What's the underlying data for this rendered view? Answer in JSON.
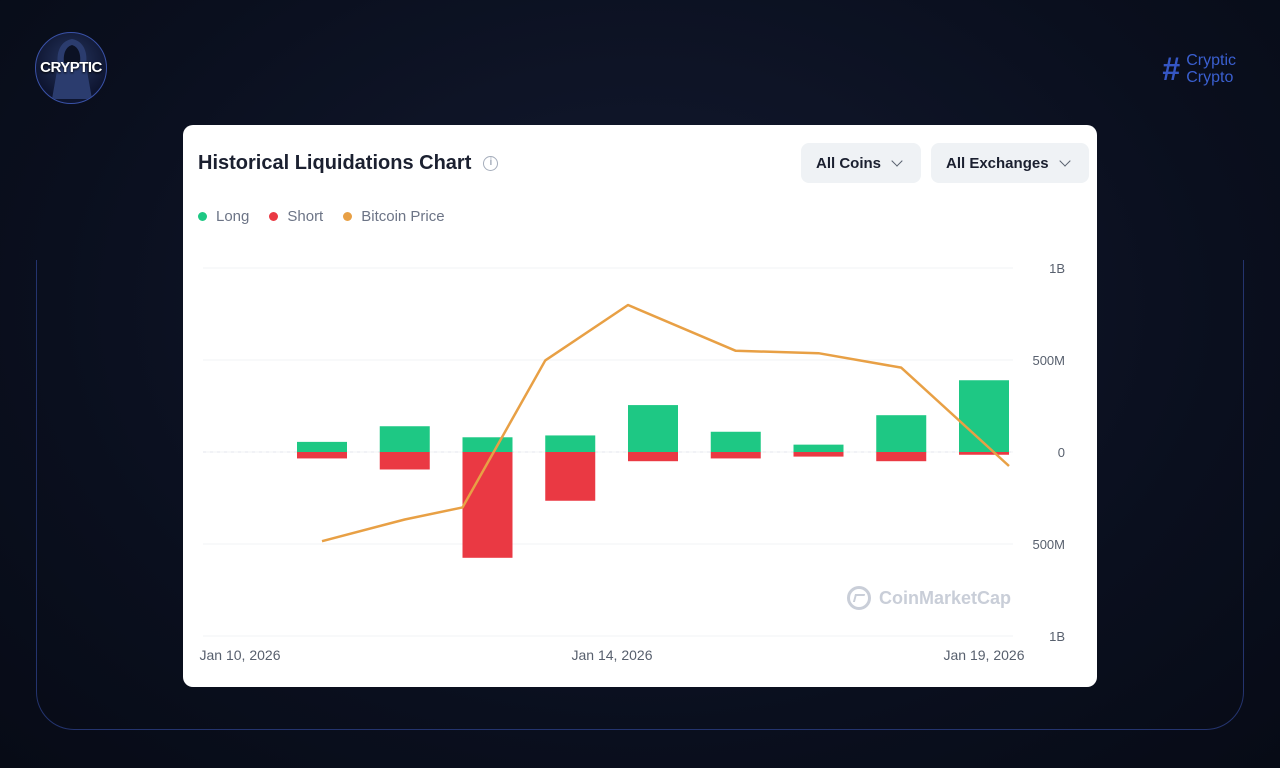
{
  "brand": {
    "logo_text": "CRYPTIC",
    "hash": "#",
    "line1": "Cryptic",
    "line2": "Crypto"
  },
  "card": {
    "title": "Historical Liquidations Chart",
    "info_glyph": "i",
    "coins_label": "All Coins",
    "exchanges_label": "All Exchanges",
    "watermark": "CoinMarketCap"
  },
  "colors": {
    "long": "#1ec884",
    "short": "#ea3943",
    "price": "#e8a045",
    "background": "#0a0f1e",
    "card": "#ffffff"
  },
  "chart_data": {
    "type": "bar",
    "title": "Historical Liquidations Chart",
    "legend": [
      "Long",
      "Short",
      "Bitcoin Price"
    ],
    "legend_position": "top-left",
    "x_tick_labels": [
      "Jan 10, 2026",
      "Jan 14, 2026",
      "Jan 19, 2026"
    ],
    "y_tick_labels": [
      "1B",
      "500M",
      "0",
      "500M",
      "1B"
    ],
    "y_ticks": [
      1000,
      500,
      0,
      -500,
      -1000
    ],
    "ylim": [
      -1000,
      1000
    ],
    "units": "USD millions",
    "grid": true,
    "series": [
      {
        "name": "Long",
        "values": [
          55,
          140,
          80,
          90,
          255,
          110,
          40,
          200,
          390
        ]
      },
      {
        "name": "Short",
        "values": [
          -35,
          -95,
          -575,
          -265,
          -50,
          -35,
          -25,
          -50,
          -15
        ]
      },
      {
        "name": "Bitcoin Price",
        "relative_values": [
          0.02,
          0.11,
          0.16,
          0.77,
          1.0,
          0.81,
          0.8,
          0.74,
          0.3
        ]
      }
    ]
  }
}
